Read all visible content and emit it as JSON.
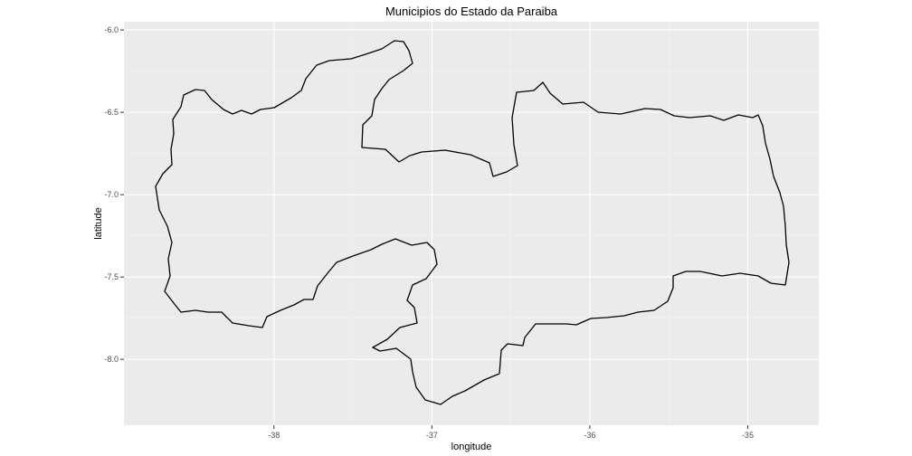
{
  "chart_data": {
    "type": "map",
    "title": "Municipios do Estado da Paraiba",
    "xlabel": "longitude",
    "ylabel": "latitude",
    "xlim": [
      -38.95,
      -34.55
    ],
    "ylim": [
      -8.4,
      -5.95
    ],
    "x_ticks": [
      -38,
      -37,
      -36,
      -35
    ],
    "y_ticks": [
      -6.0,
      -6.5,
      -7.0,
      -7.5,
      -8.0
    ],
    "x_tick_labels": [
      "-38",
      "-37",
      "-36",
      "-35"
    ],
    "y_tick_labels": [
      "-6.0",
      "-6.5",
      "-7.0",
      "-7.5",
      "-8.0"
    ],
    "panel_background": "#ebebeb",
    "gridlines": true,
    "fill": "#ffffff",
    "stroke": "#000000"
  }
}
